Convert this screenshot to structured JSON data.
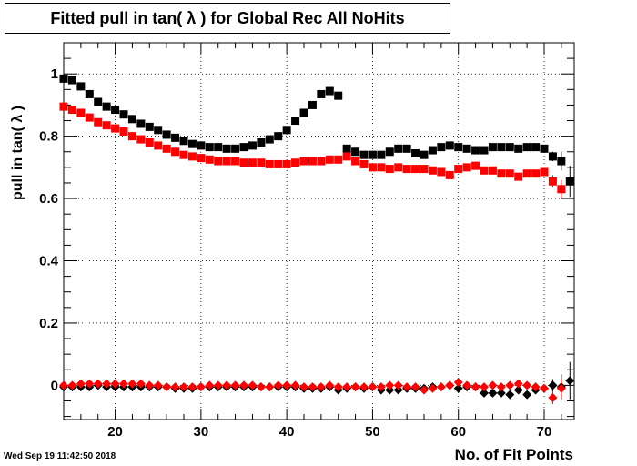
{
  "chart_data": {
    "type": "scatter",
    "title": "Fitted pull in tan( λ ) for Global Rec All NoHits",
    "xlabel": "No. of Fit Points",
    "ylabel": "pull in tan( λ )",
    "xlim": [
      14,
      73.5
    ],
    "ylim": [
      -0.11,
      1.1
    ],
    "xticks": [
      20,
      30,
      40,
      50,
      60,
      70
    ],
    "yticks": [
      0,
      0.2,
      0.4,
      0.6,
      0.8,
      1
    ],
    "ytick_labels": [
      "0",
      "0.2",
      "0.4",
      "0.6",
      "0.8",
      "1"
    ],
    "grid": true,
    "series": [
      {
        "marker": "square",
        "color": "#000000",
        "x": [
          14,
          15,
          16,
          17,
          18,
          19,
          20,
          21,
          22,
          23,
          24,
          25,
          26,
          27,
          28,
          29,
          30,
          31,
          32,
          33,
          34,
          35,
          36,
          37,
          38,
          39,
          40,
          41,
          42,
          43,
          44,
          45,
          46,
          47,
          48,
          49,
          50,
          51,
          52,
          53,
          54,
          55,
          56,
          57,
          58,
          59,
          60,
          61,
          62,
          63,
          64,
          65,
          66,
          67,
          68,
          69,
          70,
          71,
          72,
          73
        ],
        "y": [
          0.985,
          0.98,
          0.96,
          0.935,
          0.91,
          0.895,
          0.885,
          0.87,
          0.855,
          0.84,
          0.83,
          0.82,
          0.805,
          0.795,
          0.785,
          0.775,
          0.77,
          0.765,
          0.765,
          0.76,
          0.76,
          0.765,
          0.77,
          0.78,
          0.79,
          0.8,
          0.82,
          0.85,
          0.875,
          0.9,
          0.935,
          0.945,
          0.93,
          0.76,
          0.75,
          0.74,
          0.74,
          0.74,
          0.75,
          0.76,
          0.76,
          0.745,
          0.74,
          0.755,
          0.765,
          0.77,
          0.765,
          0.76,
          0.755,
          0.755,
          0.765,
          0.765,
          0.765,
          0.76,
          0.765,
          0.765,
          0.76,
          0.735,
          0.72,
          0.655
        ],
        "err": [
          0,
          0,
          0,
          0,
          0,
          0,
          0,
          0,
          0,
          0,
          0,
          0,
          0,
          0,
          0,
          0,
          0,
          0,
          0,
          0,
          0,
          0,
          0,
          0,
          0,
          0,
          0,
          0,
          0,
          0,
          0,
          0,
          0,
          0,
          0,
          0,
          0,
          0,
          0,
          0,
          0,
          0,
          0,
          0,
          0,
          0,
          0,
          0,
          0,
          0,
          0,
          0,
          0,
          0,
          0,
          0,
          0.01,
          0.015,
          0.03,
          0.05
        ]
      },
      {
        "marker": "square",
        "color": "#ff0000",
        "x": [
          14,
          15,
          16,
          17,
          18,
          19,
          20,
          21,
          22,
          23,
          24,
          25,
          26,
          27,
          28,
          29,
          30,
          31,
          32,
          33,
          34,
          35,
          36,
          37,
          38,
          39,
          40,
          41,
          42,
          43,
          44,
          45,
          46,
          47,
          48,
          49,
          50,
          51,
          52,
          53,
          54,
          55,
          56,
          57,
          58,
          59,
          60,
          61,
          62,
          63,
          64,
          65,
          66,
          67,
          68,
          69,
          70,
          71,
          72
        ],
        "y": [
          0.895,
          0.885,
          0.875,
          0.86,
          0.845,
          0.835,
          0.825,
          0.815,
          0.8,
          0.79,
          0.78,
          0.77,
          0.76,
          0.75,
          0.74,
          0.735,
          0.73,
          0.725,
          0.72,
          0.72,
          0.72,
          0.715,
          0.715,
          0.715,
          0.71,
          0.71,
          0.71,
          0.715,
          0.72,
          0.72,
          0.72,
          0.725,
          0.725,
          0.735,
          0.72,
          0.71,
          0.7,
          0.7,
          0.695,
          0.7,
          0.695,
          0.695,
          0.695,
          0.69,
          0.685,
          0.675,
          0.695,
          0.7,
          0.705,
          0.69,
          0.69,
          0.68,
          0.68,
          0.67,
          0.68,
          0.68,
          0.685,
          0.655,
          0.63
        ],
        "err": [
          0,
          0,
          0,
          0,
          0,
          0,
          0,
          0,
          0,
          0,
          0,
          0,
          0,
          0,
          0,
          0,
          0,
          0,
          0,
          0,
          0,
          0,
          0,
          0,
          0,
          0,
          0,
          0,
          0,
          0,
          0,
          0,
          0,
          0,
          0,
          0,
          0,
          0,
          0,
          0,
          0,
          0,
          0,
          0,
          0,
          0,
          0,
          0,
          0,
          0,
          0,
          0,
          0,
          0,
          0,
          0,
          0.01,
          0.02,
          0.03
        ]
      },
      {
        "marker": "diamond",
        "color": "#000000",
        "x": [
          14,
          15,
          16,
          17,
          18,
          19,
          20,
          21,
          22,
          23,
          24,
          25,
          26,
          27,
          28,
          29,
          30,
          31,
          32,
          33,
          34,
          35,
          36,
          37,
          38,
          39,
          40,
          41,
          42,
          43,
          44,
          45,
          46,
          47,
          48,
          49,
          50,
          51,
          52,
          53,
          54,
          55,
          56,
          57,
          58,
          59,
          60,
          61,
          62,
          63,
          64,
          65,
          66,
          67,
          68,
          69,
          70,
          71,
          72,
          73
        ],
        "y": [
          -0.005,
          -0.005,
          -0.005,
          -0.005,
          0,
          -0.005,
          -0.005,
          -0.005,
          -0.005,
          -0.005,
          -0.005,
          -0.005,
          -0.005,
          -0.01,
          -0.01,
          -0.01,
          -0.005,
          -0.005,
          -0.005,
          -0.005,
          -0.005,
          -0.005,
          -0.005,
          -0.005,
          -0.005,
          -0.005,
          -0.005,
          -0.005,
          -0.01,
          -0.01,
          -0.01,
          -0.005,
          -0.015,
          -0.01,
          -0.005,
          -0.01,
          -0.005,
          -0.015,
          -0.015,
          -0.015,
          -0.01,
          -0.01,
          -0.01,
          -0.005,
          -0.005,
          0,
          -0.01,
          -0.005,
          -0.005,
          -0.025,
          -0.025,
          -0.025,
          -0.03,
          -0.015,
          -0.03,
          -0.015,
          -0.01,
          0,
          -0.005,
          0.015
        ],
        "err": [
          0,
          0,
          0,
          0,
          0,
          0,
          0,
          0,
          0,
          0,
          0,
          0,
          0,
          0,
          0,
          0,
          0,
          0,
          0,
          0,
          0,
          0,
          0,
          0,
          0,
          0,
          0,
          0,
          0,
          0,
          0,
          0,
          0,
          0,
          0,
          0,
          0,
          0,
          0,
          0,
          0,
          0,
          0,
          0,
          0,
          0,
          0,
          0,
          0,
          0,
          0,
          0,
          0,
          0,
          0,
          0,
          0.01,
          0.02,
          0.04,
          0.06
        ]
      },
      {
        "marker": "diamond",
        "color": "#ff0000",
        "x": [
          14,
          15,
          16,
          17,
          18,
          19,
          20,
          21,
          22,
          23,
          24,
          25,
          26,
          27,
          28,
          29,
          30,
          31,
          32,
          33,
          34,
          35,
          36,
          37,
          38,
          39,
          40,
          41,
          42,
          43,
          44,
          45,
          46,
          47,
          48,
          49,
          50,
          51,
          52,
          53,
          54,
          55,
          56,
          57,
          58,
          59,
          60,
          61,
          62,
          63,
          64,
          65,
          66,
          67,
          68,
          69,
          70,
          71,
          72
        ],
        "y": [
          0,
          0,
          0.005,
          0.005,
          0.005,
          0.005,
          0.005,
          0.005,
          0.005,
          0.005,
          0,
          0,
          -0.005,
          -0.005,
          -0.005,
          -0.005,
          -0.005,
          0,
          0,
          0,
          0,
          0,
          0,
          -0.005,
          -0.005,
          0,
          0,
          0,
          -0.005,
          -0.005,
          -0.005,
          0,
          -0.005,
          -0.005,
          -0.005,
          -0.005,
          -0.005,
          -0.005,
          0,
          0,
          -0.005,
          -0.005,
          -0.015,
          -0.01,
          -0.005,
          0,
          0.01,
          0,
          -0.005,
          -0.005,
          0,
          -0.005,
          0,
          0.005,
          0,
          -0.005,
          -0.01,
          -0.04,
          -0.01
        ],
        "err": [
          0,
          0,
          0,
          0,
          0,
          0,
          0,
          0,
          0,
          0,
          0,
          0,
          0,
          0,
          0,
          0,
          0,
          0,
          0,
          0,
          0,
          0,
          0,
          0,
          0,
          0,
          0,
          0,
          0,
          0,
          0,
          0,
          0,
          0,
          0,
          0,
          0,
          0,
          0,
          0,
          0,
          0,
          0,
          0,
          0,
          0,
          0,
          0,
          0,
          0,
          0,
          0,
          0,
          0,
          0,
          0,
          0.01,
          0.02,
          0.03
        ]
      }
    ]
  },
  "footer": {
    "timestamp": "Wed Sep 19 11:42:50 2018"
  }
}
